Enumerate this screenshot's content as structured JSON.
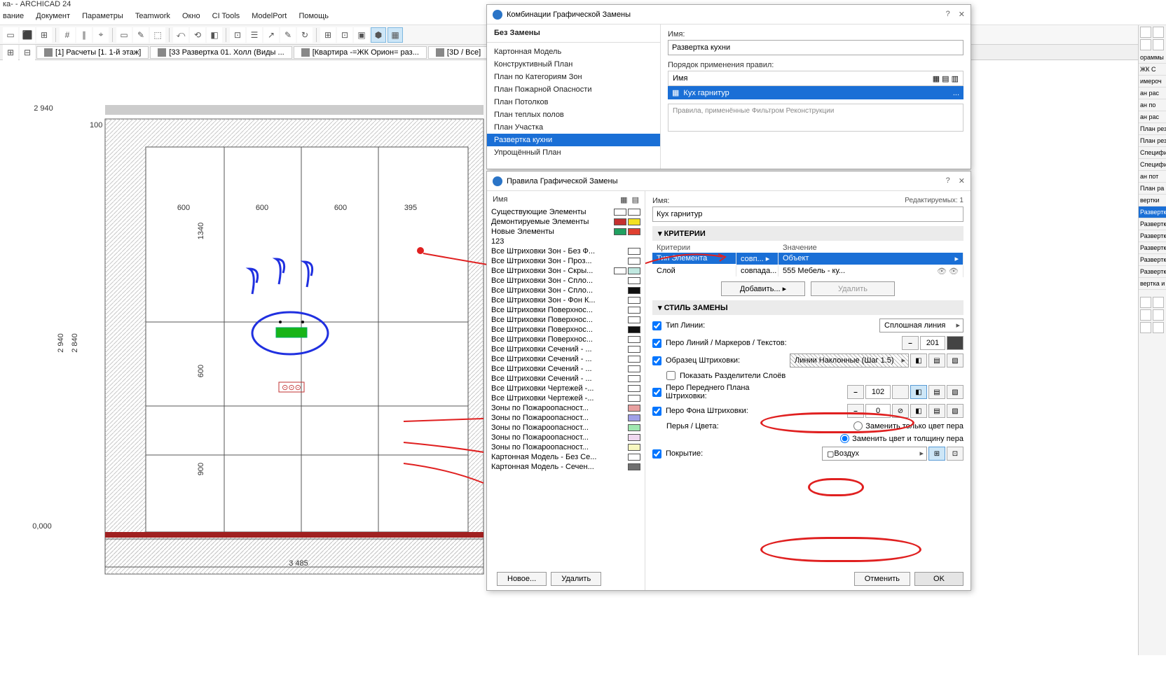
{
  "app_title": "ка- - ARCHICAD 24",
  "menu": [
    "вание",
    "Документ",
    "Параметры",
    "Teamwork",
    "Окно",
    "CI Tools",
    "ModelPort",
    "Помощь"
  ],
  "tabs": [
    {
      "icon": "#e0e0e0",
      "label": "[1] Расчеты [1. 1-й этаж]"
    },
    {
      "icon": "#e0e0e0",
      "label": "[33 Развертка 01. Холл (Виды ..."
    },
    {
      "icon": "#e0e0e0",
      "label": "[Квартира -=ЖК Орион= раз..."
    },
    {
      "icon": "#e0e0e0",
      "label": "[3D / Все]"
    }
  ],
  "drawing": {
    "dims_top": [
      "600",
      "600",
      "600",
      "395"
    ],
    "dim_overall_top": "2 940",
    "dim_left_big": "2 940",
    "dim_left_sub": "2 840",
    "dim_col1": "1340",
    "dim_col2": "600",
    "dim_col3": "900",
    "dim_top_corner": "100",
    "dim_bottom": "3 485",
    "elev_bottom": "0,000",
    "outline": "#333",
    "hatch": "#bbb",
    "green": "#18b418",
    "red_dot": "#e02020"
  },
  "dlg1": {
    "title": "Комбинации Графической Замены",
    "no_replace": "Без Замены",
    "list": [
      "Картонная Модель",
      "Конструктивный План",
      "План по Категориям Зон",
      "План Пожарной Опасности",
      "План Потолков",
      "План теплых полов",
      "План Участка",
      "Развертка кухни",
      "Упрощённый План"
    ],
    "selected_idx": 7,
    "name_label": "Имя:",
    "name_value": "Развертка кухни",
    "order_label": "Порядок применения правил:",
    "col_name": "Имя",
    "rule": "Кух гарнитур",
    "filter_note": "Правила, применённые Фильтром Реконструкции"
  },
  "dlg2": {
    "title": "Правила Графической Замены",
    "left_header": "Имя",
    "rules": [
      {
        "t": "Существующие Элементы",
        "c1": "#ffffff",
        "c2": "#ffffff"
      },
      {
        "t": "Демонтируемые Элементы",
        "c1": "#c43030",
        "c2": "#f3e020"
      },
      {
        "t": "Новые Элементы",
        "c1": "#20a060",
        "c2": "#e04030"
      },
      {
        "t": "123",
        "c1": "",
        "c2": ""
      },
      {
        "t": "Все Штриховки Зон - Без Ф...",
        "c1": "#ffffff",
        "c2": ""
      },
      {
        "t": "Все Штриховки Зон - Проз...",
        "c1": "#ffffff",
        "c2": ""
      },
      {
        "t": "Все Штриховки Зон - Скры...",
        "c1": "#ffffff",
        "c2": "#c0e8e0"
      },
      {
        "t": "Все Штриховки Зон - Спло...",
        "c1": "#ffffff",
        "c2": ""
      },
      {
        "t": "Все Штриховки Зон - Спло...",
        "c1": "#101010",
        "c2": ""
      },
      {
        "t": "Все Штриховки Зон - Фон К...",
        "c1": "#ffffff",
        "c2": ""
      },
      {
        "t": "Все Штриховки Поверхнос...",
        "c1": "#ffffff",
        "c2": ""
      },
      {
        "t": "Все Штриховки Поверхнос...",
        "c1": "#ffffff",
        "c2": ""
      },
      {
        "t": "Все Штриховки Поверхнос...",
        "c1": "#101010",
        "c2": ""
      },
      {
        "t": "Все Штриховки Поверхнос...",
        "c1": "#ffffff",
        "c2": ""
      },
      {
        "t": "Все Штриховки Сечений - ...",
        "c1": "#ffffff",
        "c2": ""
      },
      {
        "t": "Все Штриховки Сечений - ...",
        "c1": "#ffffff",
        "c2": ""
      },
      {
        "t": "Все Штриховки Сечений - ...",
        "c1": "#ffffff",
        "c2": ""
      },
      {
        "t": "Все Штриховки Сечений - ...",
        "c1": "#ffffff",
        "c2": ""
      },
      {
        "t": "Все Штриховки Чертежей -...",
        "c1": "#ffffff",
        "c2": ""
      },
      {
        "t": "Все Штриховки Чертежей -...",
        "c1": "#ffffff",
        "c2": ""
      },
      {
        "t": "Зоны по Пожароопасност...",
        "c1": "#e8a0a0",
        "c2": ""
      },
      {
        "t": "Зоны по Пожароопасност...",
        "c1": "#a0a0e8",
        "c2": ""
      },
      {
        "t": "Зоны по Пожароопасност...",
        "c1": "#a0e8b0",
        "c2": ""
      },
      {
        "t": "Зоны по Пожароопасност...",
        "c1": "#f0d8f0",
        "c2": ""
      },
      {
        "t": "Зоны по Пожароопасност...",
        "c1": "#f8f8c0",
        "c2": ""
      },
      {
        "t": "Картонная Модель - Без Се...",
        "c1": "#ffffff",
        "c2": ""
      },
      {
        "t": "Картонная Модель - Сечен...",
        "c1": "#707070",
        "c2": ""
      }
    ],
    "new_btn": "Новое...",
    "del_btn": "Удалить",
    "right": {
      "name_label": "Имя:",
      "editable": "Редактируемых: 1",
      "name_value": "Кух гарнитур",
      "sec_criteria": "КРИТЕРИИ",
      "col_crit": "Критерии",
      "col_val": "Значение",
      "crit_rows": [
        {
          "a": "Тип Элемента",
          "b": "совп... ▸",
          "c": "Объект",
          "sel": true
        },
        {
          "a": "Слой",
          "b": "совпада...",
          "c": "555 Мебель - ку...",
          "sel": false
        }
      ],
      "add_btn": "Добавить...",
      "del_crit": "Удалить",
      "sec_style": "СТИЛЬ ЗАМЕНЫ",
      "line_type": "Тип Линии:",
      "line_type_val": "Сплошная линия",
      "pen_line": "Перо Линий / Маркеров / Текстов:",
      "pen_line_val": "201",
      "fill_sample": "Образец Штриховки:",
      "fill_sample_val": "Линии Наклонные (Шаг 1.5)",
      "show_sep": "Показать Разделители Слоёв",
      "fg_pen": "Перо Переднего Плана Штриховки:",
      "fg_pen_val": "102",
      "bg_pen": "Перо Фона Штриховки:",
      "bg_pen_val": "0",
      "radio1": "Заменить только цвет пера",
      "radio2": "Заменить цвет и толщину пера",
      "pens_colors": "Перья / Цвета:",
      "coverage": "Покрытие:",
      "coverage_val": "Воздух",
      "cancel": "Отменить",
      "ok": "OK"
    }
  },
  "sidepanel": [
    "ораммы",
    "ЖК С",
    "имероч",
    "ан рас",
    "ан по",
    "ан рас",
    "План рез",
    "План рез",
    "Специфи",
    "Специфи",
    "ан пот",
    "План ра",
    "вертки",
    "Развертк",
    "Развертк",
    "Развертк",
    "Развертк",
    "Развертк",
    "Развертк",
    "вертка и"
  ]
}
